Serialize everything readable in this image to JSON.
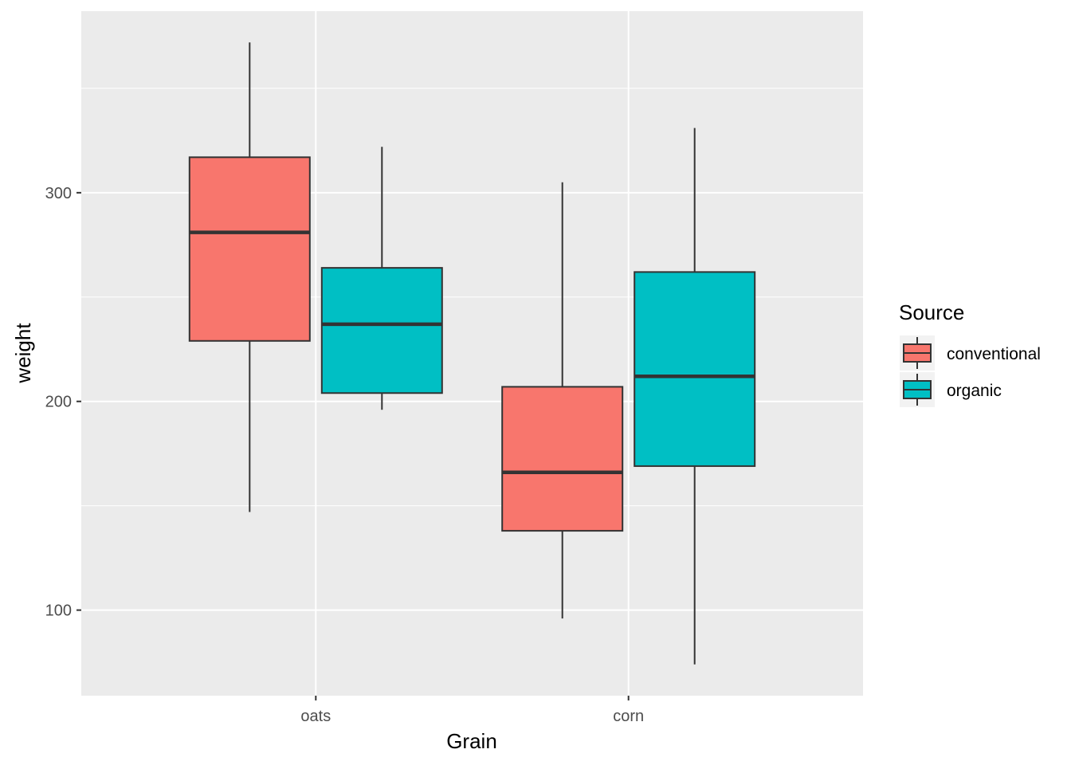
{
  "chart_data": {
    "type": "boxplot",
    "xlabel": "Grain",
    "ylabel": "weight",
    "categories": [
      "oats",
      "corn"
    ],
    "ylim": [
      59,
      387
    ],
    "yticks": [
      100,
      200,
      300
    ],
    "grid": true,
    "legend": {
      "title": "Source",
      "position": "right",
      "entries": [
        "conventional",
        "organic"
      ]
    },
    "series": [
      {
        "name": "conventional",
        "color": "#F8766D",
        "boxes": [
          {
            "category": "oats",
            "min": 147,
            "q1": 229,
            "median": 281,
            "q3": 317,
            "max": 372
          },
          {
            "category": "corn",
            "min": 96,
            "q1": 138,
            "median": 166,
            "q3": 207,
            "max": 305
          }
        ]
      },
      {
        "name": "organic",
        "color": "#00BFC4",
        "boxes": [
          {
            "category": "oats",
            "min": 196,
            "q1": 204,
            "median": 237,
            "q3": 264,
            "max": 322
          },
          {
            "category": "corn",
            "min": 74,
            "q1": 169,
            "median": 212,
            "q3": 262,
            "max": 331
          }
        ]
      }
    ]
  }
}
